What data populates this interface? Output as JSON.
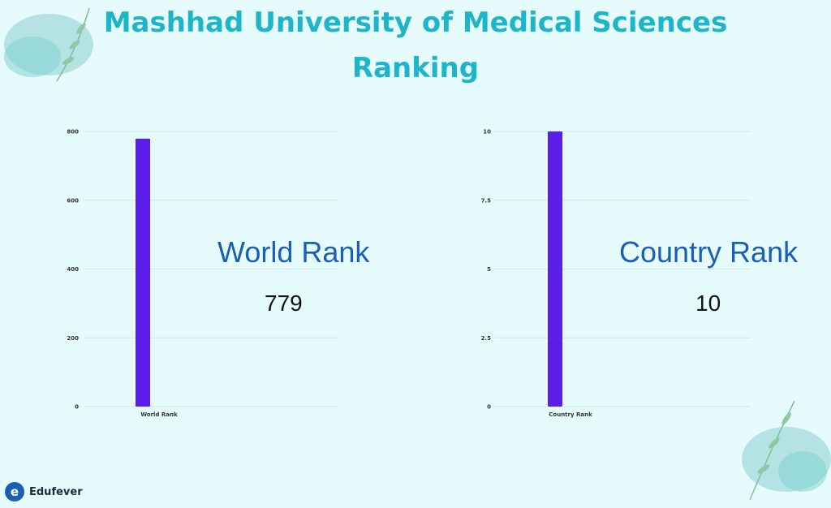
{
  "title_line1": "Mashhad University of Medical Sciences",
  "title_line2": "Ranking",
  "brand": "Edufever",
  "colors": {
    "bar": "#5b1ee8",
    "title": "#1fb5c9",
    "label": "#1b5fb5",
    "grid": "#cfe6ea"
  },
  "chart_data": [
    {
      "type": "bar",
      "categories": [
        "World Rank"
      ],
      "values": [
        779
      ],
      "yticks": [
        "0",
        "200",
        "400",
        "600",
        "800"
      ],
      "ylim": [
        0,
        800
      ],
      "overlay_label": "World Rank",
      "overlay_value": "779"
    },
    {
      "type": "bar",
      "categories": [
        "Country Rank"
      ],
      "values": [
        10
      ],
      "yticks": [
        "0",
        "2.5",
        "5",
        "7.5",
        "10"
      ],
      "ylim": [
        0,
        10
      ],
      "overlay_label": "Country Rank",
      "overlay_value": "10"
    }
  ]
}
